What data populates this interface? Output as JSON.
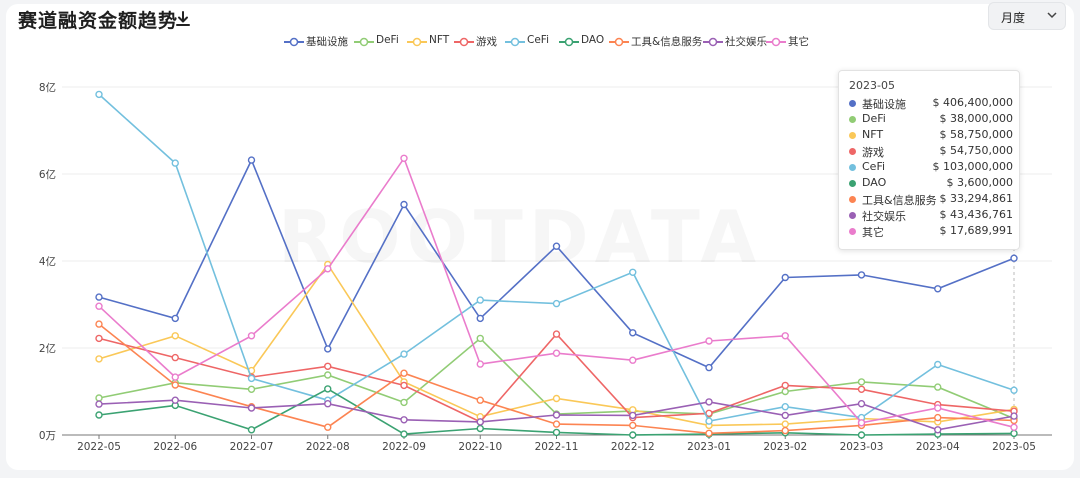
{
  "header": {
    "title": "赛道融资金额趋势",
    "period_select": "月度"
  },
  "chart_data": {
    "type": "line",
    "categories": [
      "2022-05",
      "2022-06",
      "2022-07",
      "2022-08",
      "2022-09",
      "2022-10",
      "2022-11",
      "2022-12",
      "2023-01",
      "2023-02",
      "2023-03",
      "2023-04",
      "2023-05"
    ],
    "y_ticks": [
      {
        "value": 0,
        "label": "0万"
      },
      {
        "value": 2,
        "label": "2亿"
      },
      {
        "value": 4,
        "label": "4亿"
      },
      {
        "value": 6,
        "label": "6亿"
      },
      {
        "value": 8,
        "label": "8亿"
      }
    ],
    "ylim": [
      0,
      8
    ],
    "y_unit": "亿",
    "grid": true,
    "legend_position": "top-center",
    "series": [
      {
        "name": "基础设施",
        "color": "#5470c6",
        "values": [
          3.17,
          2.68,
          6.32,
          1.98,
          5.3,
          2.68,
          4.34,
          2.35,
          1.55,
          3.62,
          3.68,
          3.36,
          4.064
        ]
      },
      {
        "name": "DeFi",
        "color": "#91cc75",
        "values": [
          0.85,
          1.2,
          1.05,
          1.38,
          0.75,
          2.22,
          0.48,
          0.55,
          0.48,
          1.0,
          1.22,
          1.1,
          0.38
        ]
      },
      {
        "name": "NFT",
        "color": "#fac858",
        "values": [
          1.75,
          2.28,
          1.48,
          3.92,
          1.22,
          0.42,
          0.84,
          0.58,
          0.22,
          0.25,
          0.38,
          0.3,
          0.5875
        ]
      },
      {
        "name": "游戏",
        "color": "#ee6666",
        "values": [
          2.22,
          1.78,
          1.33,
          1.58,
          1.14,
          0.3,
          2.32,
          0.4,
          0.5,
          1.14,
          1.05,
          0.7,
          0.5475
        ]
      },
      {
        "name": "CeFi",
        "color": "#73c0de",
        "values": [
          7.83,
          6.25,
          1.3,
          0.8,
          1.86,
          3.1,
          3.02,
          3.74,
          0.32,
          0.65,
          0.4,
          1.62,
          1.03
        ]
      },
      {
        "name": "DAO",
        "color": "#3ba272",
        "values": [
          0.46,
          0.68,
          0.12,
          1.06,
          0.02,
          0.15,
          0.06,
          0.0,
          0.02,
          0.05,
          0.0,
          0.02,
          0.036
        ]
      },
      {
        "name": "工具&信息服务",
        "color": "#fc8452",
        "values": [
          2.55,
          1.15,
          0.65,
          0.18,
          1.42,
          0.8,
          0.25,
          0.22,
          0.04,
          0.1,
          0.22,
          0.4,
          0.3329
        ]
      },
      {
        "name": "社交娱乐",
        "color": "#9a60b4",
        "values": [
          0.71,
          0.8,
          0.62,
          0.72,
          0.35,
          0.3,
          0.46,
          0.45,
          0.76,
          0.45,
          0.72,
          0.12,
          0.4344
        ]
      },
      {
        "name": "其它",
        "color": "#ea7ccc",
        "values": [
          2.96,
          1.33,
          2.28,
          3.82,
          6.36,
          1.63,
          1.88,
          1.72,
          2.16,
          2.28,
          0.28,
          0.62,
          0.1769
        ]
      }
    ],
    "watermark": "ROOTDATA",
    "tooltip": {
      "title": "2023-05",
      "rows": [
        {
          "name": "基础设施",
          "color": "#5470c6",
          "value": "$ 406,400,000"
        },
        {
          "name": "DeFi",
          "color": "#91cc75",
          "value": "$ 38,000,000"
        },
        {
          "name": "NFT",
          "color": "#fac858",
          "value": "$ 58,750,000"
        },
        {
          "name": "游戏",
          "color": "#ee6666",
          "value": "$ 54,750,000"
        },
        {
          "name": "CeFi",
          "color": "#73c0de",
          "value": "$ 103,000,000"
        },
        {
          "name": "DAO",
          "color": "#3ba272",
          "value": "$ 3,600,000"
        },
        {
          "name": "工具&信息服务",
          "color": "#fc8452",
          "value": "$ 33,294,861"
        },
        {
          "name": "社交娱乐",
          "color": "#9a60b4",
          "value": "$ 43,436,761"
        },
        {
          "name": "其它",
          "color": "#ea7ccc",
          "value": "$ 17,689,991"
        }
      ]
    }
  }
}
